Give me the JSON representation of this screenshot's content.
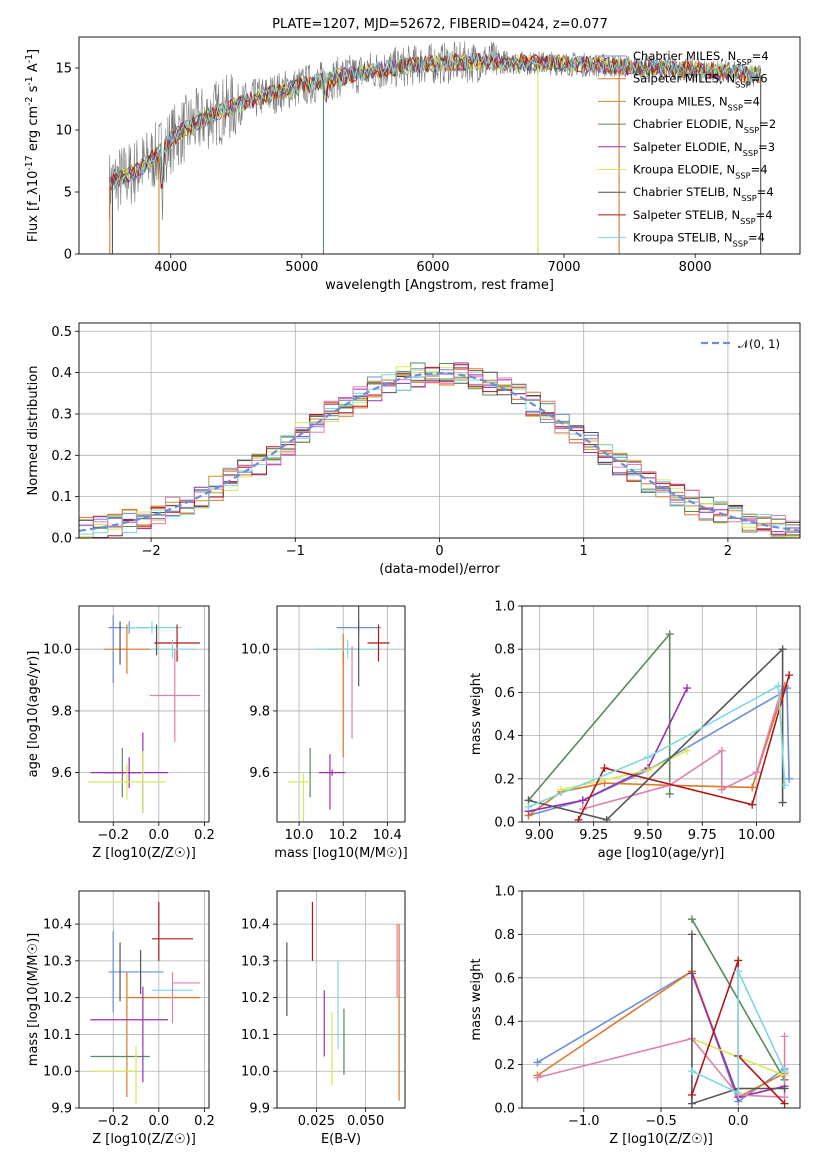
{
  "colors": {
    "chabrier_miles": "#6a8fd8",
    "salpeter_miles": "#e0782a",
    "kroupa_miles": "#c8902a",
    "chabrier_elodie": "#5a8a5e",
    "salpeter_elodie": "#9a2fb0",
    "kroupa_elodie": "#d8e858",
    "chabrier_stelib": "#555555",
    "salpeter_stelib": "#b01818",
    "kroupa_stelib": "#7ed8e0",
    "pink": "#e080b0",
    "normal_curve": "#6a8fd8",
    "grid": "#b0b0b0"
  },
  "chart_data": [
    {
      "id": "spectrum",
      "type": "line",
      "title": "PLATE=1207, MJD=52672, FIBERID=0424, z=0.077",
      "xlabel": "wavelength [Angstrom, rest frame]",
      "ylabel": "Flux [f_λ10^-17 erg cm^-2 s^-1 A^-1]",
      "xlim": [
        3300,
        8800
      ],
      "ylim": [
        0,
        17.5
      ],
      "xticks": [
        "4000",
        "5000",
        "6000",
        "7000",
        "8000"
      ],
      "yticks": [
        "0",
        "5",
        "10",
        "15"
      ],
      "grid": false,
      "legend_position": "upper-right",
      "series": [
        {
          "name": "Chabrier MILES, N_SSP=4",
          "color_key": "chabrier_miles"
        },
        {
          "name": "Salpeter MILES, N_SSP=6",
          "color_key": "salpeter_miles"
        },
        {
          "name": "Kroupa MILES, N_SSP=4",
          "color_key": "kroupa_miles"
        },
        {
          "name": "Chabrier ELODIE, N_SSP=2",
          "color_key": "chabrier_elodie"
        },
        {
          "name": "Salpeter ELODIE, N_SSP=3",
          "color_key": "salpeter_elodie"
        },
        {
          "name": "Kroupa ELODIE, N_SSP=4",
          "color_key": "kroupa_elodie"
        },
        {
          "name": "Chabrier STELIB, N_SSP=4",
          "color_key": "chabrier_stelib"
        },
        {
          "name": "Salpeter STELIB, N_SSP=4",
          "color_key": "salpeter_stelib"
        },
        {
          "name": "Kroupa STELIB, N_SSP=4",
          "color_key": "kroupa_stelib"
        }
      ],
      "continuum": {
        "x": [
          3530,
          3600,
          3700,
          3800,
          3900,
          4000,
          4100,
          4200,
          4300,
          4500,
          4700,
          4900,
          5100,
          5300,
          5500,
          5700,
          5900,
          6100,
          6300,
          6500,
          6700,
          6900,
          7100,
          7300,
          7500,
          7700,
          7900,
          8100,
          8300,
          8500
        ],
        "y": [
          5.6,
          6.0,
          6.5,
          7.2,
          8.0,
          9.2,
          10.0,
          10.6,
          11.2,
          12.0,
          12.7,
          13.3,
          13.8,
          14.3,
          14.7,
          15.0,
          15.3,
          15.4,
          15.5,
          15.5,
          15.4,
          15.4,
          15.3,
          15.2,
          15.1,
          15.0,
          14.9,
          14.8,
          14.6,
          14.4
        ]
      }
    },
    {
      "id": "residuals",
      "type": "line",
      "xlabel": "(data-model)/error",
      "ylabel": "Normed distribution",
      "xlim": [
        -2.5,
        2.5
      ],
      "ylim": [
        0,
        0.52
      ],
      "xticks": [
        "−2",
        "−1",
        "0",
        "1",
        "2"
      ],
      "yticks": [
        "0.0",
        "0.1",
        "0.2",
        "0.3",
        "0.4",
        "0.5"
      ],
      "grid": true,
      "legend_position": "upper-right",
      "legend": [
        "𝒩(0, 1)"
      ],
      "curve": "standard normal (mean 0, sigma 1)",
      "histograms": "step histograms of (data-model)/error for the 9 fits, bin width 0.1"
    },
    {
      "id": "age_vs_Z",
      "type": "scatter",
      "xlabel": "Z [log10(Z/Z☉)]",
      "ylabel": "age [log10(age/yr)]",
      "xlim": [
        -0.35,
        0.22
      ],
      "ylim": [
        9.44,
        10.14
      ],
      "xticks": [
        "−0.2",
        "0.0",
        "0.2"
      ],
      "yticks": [
        "9.6",
        "9.8",
        "10.0"
      ],
      "grid": true,
      "points": [
        {
          "x": -0.2,
          "xerr": 0.0,
          "y": 10.0,
          "yerr": 0.11,
          "color_key": "chabrier_miles"
        },
        {
          "x": -0.13,
          "xerr": 0.09,
          "y": 10.07,
          "yerr": 0.02,
          "color_key": "chabrier_miles"
        },
        {
          "x": -0.03,
          "xerr": 0.13,
          "y": 10.07,
          "yerr": 0.02,
          "color_key": "kroupa_stelib"
        },
        {
          "x": -0.14,
          "xerr": 0.1,
          "y": 10.0,
          "yerr": 0.08,
          "color_key": "salpeter_miles"
        },
        {
          "x": 0.08,
          "xerr": 0.1,
          "y": 10.02,
          "yerr": 0.06,
          "color_key": "salpeter_stelib"
        },
        {
          "x": 0.06,
          "xerr": 0.1,
          "y": 10.0,
          "yerr": 0.03,
          "color_key": "kroupa_stelib"
        },
        {
          "x": -0.17,
          "xerr": 0.0,
          "y": 10.02,
          "yerr": 0.07,
          "color_key": "chabrier_stelib"
        },
        {
          "x": -0.01,
          "xerr": 0.0,
          "y": 10.03,
          "yerr": 0.05,
          "color_key": "chabrier_stelib"
        },
        {
          "x": 0.07,
          "xerr": 0.11,
          "y": 9.85,
          "yerr": 0.15,
          "color_key": "pink"
        },
        {
          "x": -0.16,
          "xerr": 0.08,
          "y": 9.6,
          "yerr": 0.08,
          "color_key": "chabrier_elodie"
        },
        {
          "x": -0.13,
          "xerr": 0.17,
          "y": 9.6,
          "yerr": 0.05,
          "color_key": "salpeter_elodie"
        },
        {
          "x": -0.07,
          "xerr": 0.0,
          "y": 9.6,
          "yerr": 0.13,
          "color_key": "salpeter_elodie"
        },
        {
          "x": -0.14,
          "xerr": 0.17,
          "y": 9.57,
          "yerr": 0.06,
          "color_key": "kroupa_elodie"
        },
        {
          "x": -0.07,
          "xerr": 0.0,
          "y": 9.57,
          "yerr": 0.1,
          "color_key": "kroupa_elodie"
        }
      ]
    },
    {
      "id": "age_vs_mass",
      "type": "scatter",
      "xlabel": "mass [log10(M/M☉)]",
      "ylabel": "",
      "xlim": [
        9.9,
        10.48
      ],
      "ylim": [
        9.44,
        10.14
      ],
      "xticks": [
        "10.0",
        "10.2",
        "10.4"
      ],
      "yticks": [
        "9.6",
        "9.8",
        "10.0"
      ],
      "grid": true,
      "points": [
        {
          "x": 10.27,
          "xerr": 0.1,
          "y": 10.07,
          "yerr": 0.02,
          "color_key": "chabrier_miles"
        },
        {
          "x": 10.2,
          "xerr": 0.07,
          "y": 10.0,
          "yerr": 0.05,
          "color_key": "salpeter_miles"
        },
        {
          "x": 10.2,
          "xerr": 0.0,
          "y": 9.82,
          "yerr": 0.17,
          "color_key": "salpeter_miles"
        },
        {
          "x": 10.22,
          "xerr": 0.15,
          "y": 10.0,
          "yerr": 0.03,
          "color_key": "kroupa_stelib"
        },
        {
          "x": 10.27,
          "xerr": 0.0,
          "y": 10.02,
          "yerr": 0.14,
          "color_key": "chabrier_stelib"
        },
        {
          "x": 10.36,
          "xerr": 0.05,
          "y": 10.02,
          "yerr": 0.06,
          "color_key": "salpeter_stelib"
        },
        {
          "x": 10.24,
          "xerr": 0.0,
          "y": 9.86,
          "yerr": 0.15,
          "color_key": "pink"
        },
        {
          "x": 10.05,
          "xerr": 0.0,
          "y": 9.6,
          "yerr": 0.08,
          "color_key": "chabrier_elodie"
        },
        {
          "x": 10.15,
          "xerr": 0.06,
          "y": 9.6,
          "yerr": 0.01,
          "color_key": "salpeter_elodie"
        },
        {
          "x": 10.14,
          "xerr": 0.0,
          "y": 9.57,
          "yerr": 0.09,
          "color_key": "salpeter_elodie"
        },
        {
          "x": 10.0,
          "xerr": 0.05,
          "y": 9.57,
          "yerr": 0.0,
          "color_key": "kroupa_elodie"
        },
        {
          "x": 10.02,
          "xerr": 0.0,
          "y": 9.52,
          "yerr": 0.08,
          "color_key": "kroupa_elodie"
        }
      ]
    },
    {
      "id": "weight_vs_age",
      "type": "line",
      "xlabel": "age [log10(age/yr)]",
      "ylabel": "mass weight",
      "xlim": [
        8.92,
        10.2
      ],
      "ylim": [
        0,
        1.0
      ],
      "xticks": [
        "9.00",
        "9.25",
        "9.50",
        "9.75",
        "10.00"
      ],
      "yticks": [
        "0.0",
        "0.2",
        "0.4",
        "0.6",
        "0.8",
        "1.0"
      ],
      "grid": true,
      "series": [
        {
          "color_key": "chabrier_miles",
          "x": [
            8.95,
            9.2,
            9.5,
            10.12,
            10.14,
            10.15
          ],
          "y": [
            0.03,
            0.1,
            0.24,
            0.6,
            0.62,
            0.2
          ]
        },
        {
          "color_key": "salpeter_miles",
          "x": [
            8.95,
            9.1,
            9.3,
            9.6,
            9.98,
            10.13
          ],
          "y": [
            0.03,
            0.14,
            0.18,
            0.17,
            0.16,
            0.63
          ]
        },
        {
          "color_key": "chabrier_elodie",
          "x": [
            8.95,
            9.6,
            9.6
          ],
          "y": [
            0.1,
            0.87,
            0.13
          ]
        },
        {
          "color_key": "salpeter_elodie",
          "x": [
            8.95,
            9.2,
            9.5,
            9.68
          ],
          "y": [
            0.05,
            0.1,
            0.25,
            0.62
          ]
        },
        {
          "color_key": "kroupa_elodie",
          "x": [
            9.1,
            9.5,
            9.68
          ],
          "y": [
            0.15,
            0.24,
            0.33
          ]
        },
        {
          "color_key": "pink",
          "x": [
            9.2,
            9.6,
            9.84,
            9.84,
            10.0,
            10.12
          ],
          "y": [
            0.06,
            0.17,
            0.33,
            0.15,
            0.23,
            0.63
          ]
        },
        {
          "color_key": "chabrier_stelib",
          "x": [
            8.95,
            9.31,
            10.12,
            10.12
          ],
          "y": [
            0.1,
            0.01,
            0.8,
            0.09
          ]
        },
        {
          "color_key": "salpeter_stelib",
          "x": [
            9.18,
            9.3,
            9.98,
            10.15
          ],
          "y": [
            0.01,
            0.25,
            0.08,
            0.68
          ]
        },
        {
          "color_key": "kroupa_stelib",
          "x": [
            8.95,
            9.5,
            10.1,
            10.13
          ],
          "y": [
            0.07,
            0.3,
            0.63,
            0.17
          ]
        }
      ]
    },
    {
      "id": "mass_vs_Z",
      "type": "scatter",
      "xlabel": "Z [log10(Z/Z☉)]",
      "ylabel": "mass [log10(M/M☉)]",
      "xlim": [
        -0.35,
        0.22
      ],
      "ylim": [
        9.9,
        10.49
      ],
      "xticks": [
        "−0.2",
        "0.0",
        "0.2"
      ],
      "yticks": [
        "9.9",
        "10.0",
        "10.1",
        "10.2",
        "10.3",
        "10.4"
      ],
      "grid": true,
      "points": [
        {
          "x": -0.2,
          "xerr": 0.0,
          "y": 10.27,
          "yerr": 0.11,
          "color_key": "chabrier_miles"
        },
        {
          "x": -0.1,
          "xerr": 0.12,
          "y": 10.27,
          "yerr": 0.0,
          "color_key": "chabrier_miles"
        },
        {
          "x": -0.14,
          "xerr": 0.0,
          "y": 10.1,
          "yerr": 0.17,
          "color_key": "salpeter_miles"
        },
        {
          "x": 0.02,
          "xerr": 0.16,
          "y": 10.2,
          "yerr": 0.0,
          "color_key": "salpeter_miles"
        },
        {
          "x": 0.06,
          "xerr": 0.09,
          "y": 10.36,
          "yerr": 0.0,
          "color_key": "salpeter_stelib"
        },
        {
          "x": 0.0,
          "xerr": 0.0,
          "y": 10.38,
          "yerr": 0.08,
          "color_key": "salpeter_stelib"
        },
        {
          "x": -0.17,
          "xerr": 0.0,
          "y": 10.27,
          "yerr": 0.08,
          "color_key": "chabrier_stelib"
        },
        {
          "x": -0.08,
          "xerr": 0.0,
          "y": 10.27,
          "yerr": 0.06,
          "color_key": "chabrier_stelib"
        },
        {
          "x": 0.06,
          "xerr": 0.09,
          "y": 10.22,
          "yerr": 0.0,
          "color_key": "kroupa_stelib"
        },
        {
          "x": 0.12,
          "xerr": 0.06,
          "y": 10.24,
          "yerr": 0.0,
          "color_key": "pink"
        },
        {
          "x": 0.06,
          "xerr": 0.0,
          "y": 10.2,
          "yerr": 0.07,
          "color_key": "pink"
        },
        {
          "x": -0.17,
          "xerr": 0.13,
          "y": 10.04,
          "yerr": 0.0,
          "color_key": "chabrier_elodie"
        },
        {
          "x": -0.13,
          "xerr": 0.17,
          "y": 10.14,
          "yerr": 0.0,
          "color_key": "salpeter_elodie"
        },
        {
          "x": -0.07,
          "xerr": 0.0,
          "y": 10.1,
          "yerr": 0.13,
          "color_key": "salpeter_elodie"
        },
        {
          "x": -0.2,
          "xerr": 0.1,
          "y": 10.0,
          "yerr": 0.0,
          "color_key": "kroupa_elodie"
        },
        {
          "x": -0.1,
          "xerr": 0.0,
          "y": 9.99,
          "yerr": 0.08,
          "color_key": "kroupa_elodie"
        }
      ]
    },
    {
      "id": "mass_vs_ebv",
      "type": "scatter",
      "xlabel": "E(B-V)",
      "ylabel": "",
      "xlim": [
        0.005,
        0.07
      ],
      "ylim": [
        9.9,
        10.49
      ],
      "xticks": [
        "0.025",
        "0.050"
      ],
      "yticks": [
        "9.9",
        "10.0",
        "10.1",
        "10.2",
        "10.3",
        "10.4"
      ],
      "grid": true,
      "points": [
        {
          "x": 0.01,
          "y": 10.25,
          "yerr": 0.1,
          "color_key": "chabrier_stelib"
        },
        {
          "x": 0.023,
          "y": 10.38,
          "yerr": 0.08,
          "color_key": "salpeter_stelib"
        },
        {
          "x": 0.029,
          "y": 10.13,
          "yerr": 0.09,
          "color_key": "salpeter_elodie"
        },
        {
          "x": 0.033,
          "y": 10.06,
          "yerr": 0.1,
          "color_key": "kroupa_elodie"
        },
        {
          "x": 0.036,
          "y": 10.18,
          "yerr": 0.12,
          "color_key": "kroupa_stelib"
        },
        {
          "x": 0.039,
          "y": 10.08,
          "yerr": 0.09,
          "color_key": "chabrier_elodie"
        },
        {
          "x": 0.067,
          "y": 10.16,
          "yerr": 0.24,
          "color_key": "salpeter_miles"
        },
        {
          "x": 0.066,
          "y": 10.3,
          "yerr": 0.1,
          "color_key": "pink"
        }
      ]
    },
    {
      "id": "weight_vs_Z",
      "type": "line",
      "xlabel": "Z [log10(Z/Z☉)]",
      "ylabel": "mass weight",
      "xlim": [
        -1.4,
        0.4
      ],
      "ylim": [
        0,
        1.0
      ],
      "xticks": [
        "−1.0",
        "−0.5",
        "0.0"
      ],
      "yticks": [
        "0.0",
        "0.2",
        "0.4",
        "0.6",
        "0.8",
        "1.0"
      ],
      "grid": true,
      "series": [
        {
          "color_key": "chabrier_miles",
          "x": [
            -1.3,
            -0.3,
            0.0,
            0.3
          ],
          "y": [
            0.21,
            0.63,
            0.03,
            0.18
          ]
        },
        {
          "color_key": "salpeter_miles",
          "x": [
            -1.3,
            -0.3,
            0.0,
            0.3
          ],
          "y": [
            0.15,
            0.63,
            0.05,
            0.16
          ]
        },
        {
          "color_key": "chabrier_elodie",
          "x": [
            -0.3,
            0.3
          ],
          "y": [
            0.87,
            0.13
          ]
        },
        {
          "color_key": "salpeter_elodie",
          "x": [
            -0.3,
            0.0,
            0.3
          ],
          "y": [
            0.62,
            0.05,
            0.1
          ]
        },
        {
          "color_key": "kroupa_elodie",
          "x": [
            -0.3,
            0.3
          ],
          "y": [
            0.32,
            0.15
          ]
        },
        {
          "color_key": "pink",
          "x": [
            -1.3,
            -0.3,
            0.0,
            0.3,
            0.3
          ],
          "y": [
            0.14,
            0.32,
            0.06,
            0.05,
            0.33
          ]
        },
        {
          "color_key": "chabrier_stelib",
          "x": [
            -0.3,
            -0.3,
            0.0,
            0.3
          ],
          "y": [
            0.8,
            0.02,
            0.09,
            0.09
          ]
        },
        {
          "color_key": "salpeter_stelib",
          "x": [
            -0.3,
            0.0,
            0.0,
            0.3
          ],
          "y": [
            0.06,
            0.68,
            0.24,
            0.02
          ]
        },
        {
          "color_key": "kroupa_stelib",
          "x": [
            -0.3,
            0.0,
            0.0,
            0.3
          ],
          "y": [
            0.17,
            0.07,
            0.63,
            0.17
          ]
        }
      ]
    }
  ]
}
